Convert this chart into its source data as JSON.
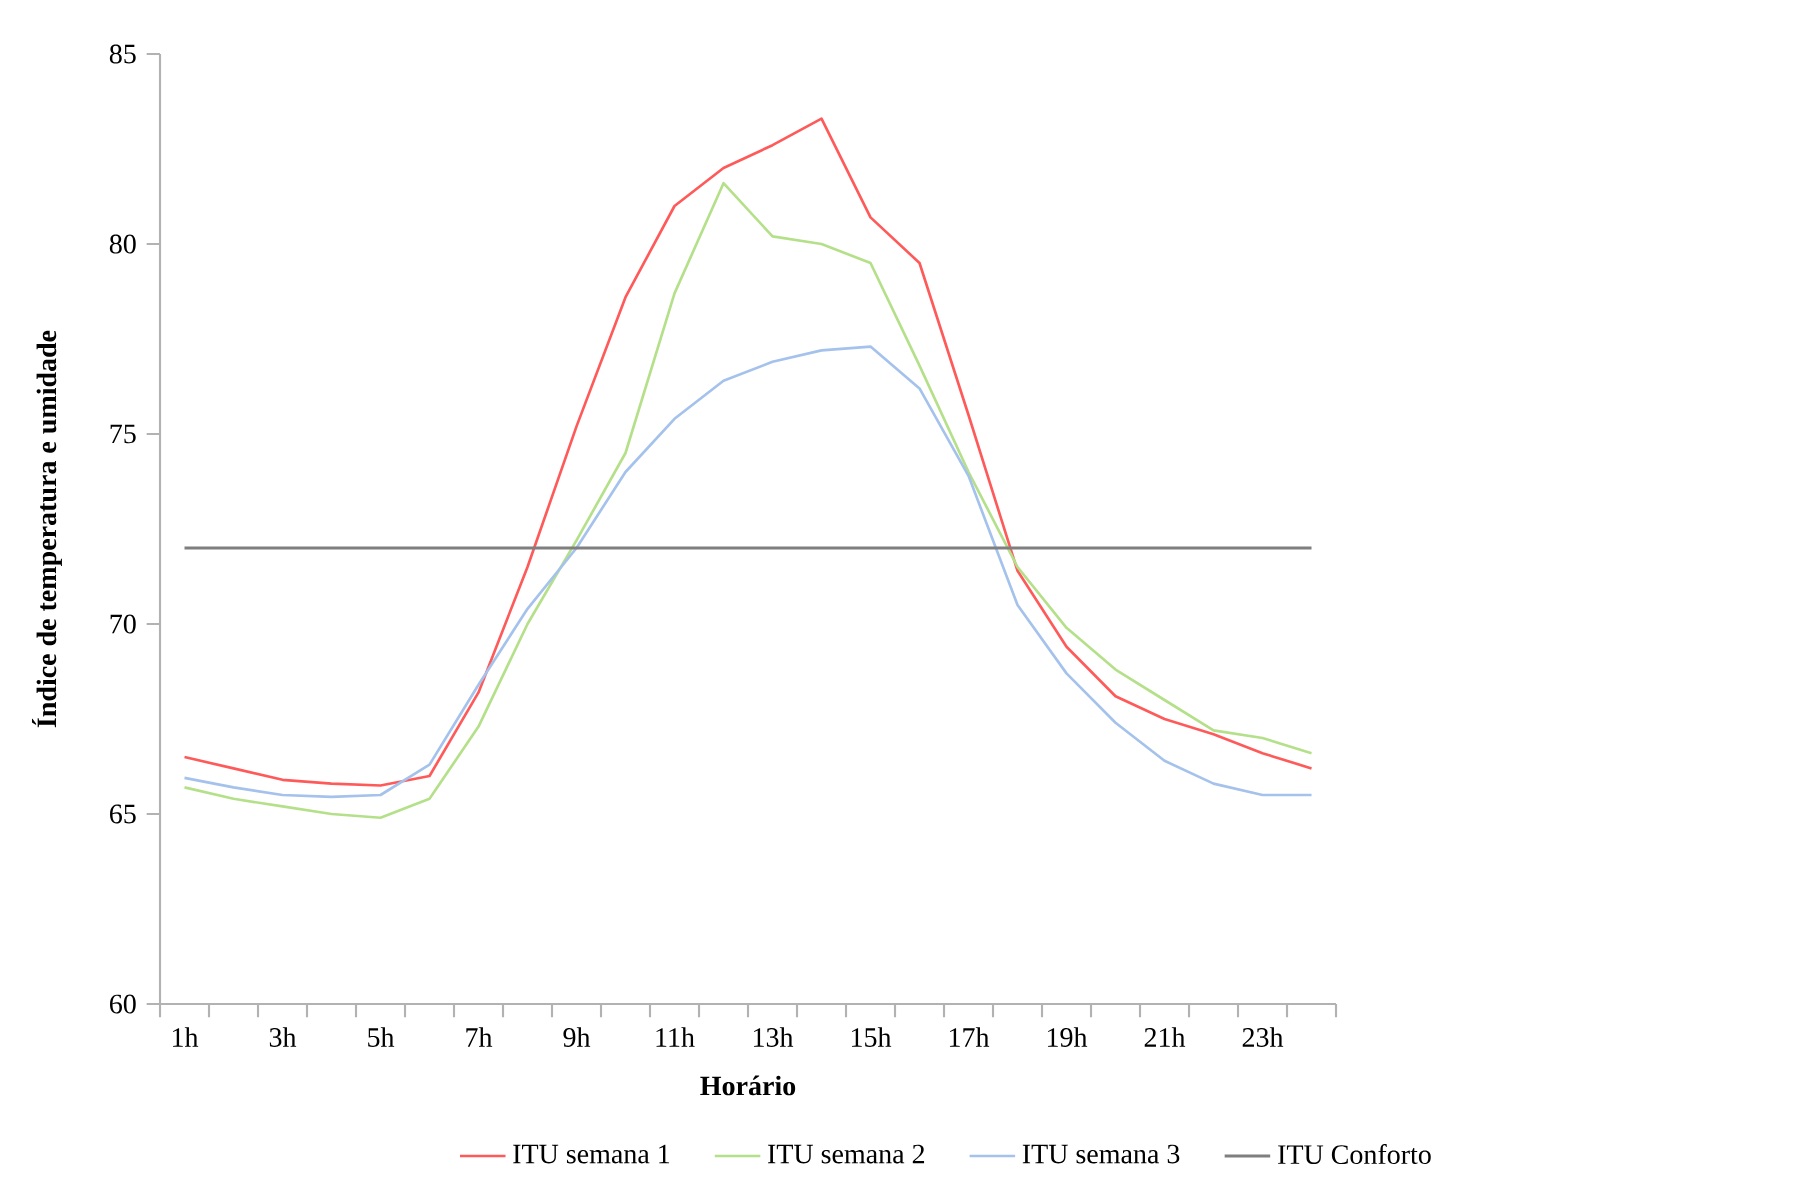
{
  "chart_data": {
    "type": "line",
    "xlabel": "Horário",
    "ylabel": "Índice de temperatura e umidade",
    "categories": [
      "1h",
      null,
      "3h",
      null,
      "5h",
      null,
      "7h",
      null,
      "9h",
      null,
      "11h",
      null,
      "13h",
      null,
      "15h",
      null,
      "17h",
      null,
      "19h",
      null,
      "21h",
      null,
      "23h",
      null
    ],
    "series": [
      {
        "name": "ITU  semana 1",
        "color": "#ff5a5a",
        "values": [
          66.5,
          66.2,
          65.9,
          65.8,
          65.75,
          66.0,
          68.2,
          71.5,
          75.2,
          78.6,
          81.0,
          82.0,
          82.6,
          83.3,
          80.7,
          79.5,
          75.5,
          71.4,
          69.4,
          68.1,
          67.5,
          67.1,
          66.6,
          66.2
        ]
      },
      {
        "name": "ITU  semana 2",
        "color": "#b5e08a",
        "values": [
          65.7,
          65.4,
          65.2,
          65.0,
          64.9,
          65.4,
          67.3,
          70.0,
          72.2,
          74.5,
          78.7,
          81.6,
          80.2,
          80.0,
          79.5,
          76.8,
          74.0,
          71.5,
          69.9,
          68.8,
          68.0,
          67.2,
          67.0,
          66.6
        ]
      },
      {
        "name": "ITU  semana 3",
        "color": "#a4c2ec",
        "values": [
          65.95,
          65.7,
          65.5,
          65.45,
          65.5,
          66.3,
          68.4,
          70.4,
          72.0,
          74.0,
          75.4,
          76.4,
          76.9,
          77.2,
          77.3,
          76.2,
          73.9,
          70.5,
          68.7,
          67.4,
          66.4,
          65.8,
          65.5,
          65.5
        ]
      }
    ],
    "ref_lines": [
      {
        "axis": "y",
        "value": 72,
        "label": "ITU Conforto",
        "color": "#7f7f7f"
      }
    ],
    "ylim": [
      60,
      85
    ],
    "yticks": [
      60,
      65,
      70,
      75,
      80,
      85
    ],
    "grid": false,
    "legend": "bottom",
    "marker": "none",
    "line_style": "solid"
  }
}
